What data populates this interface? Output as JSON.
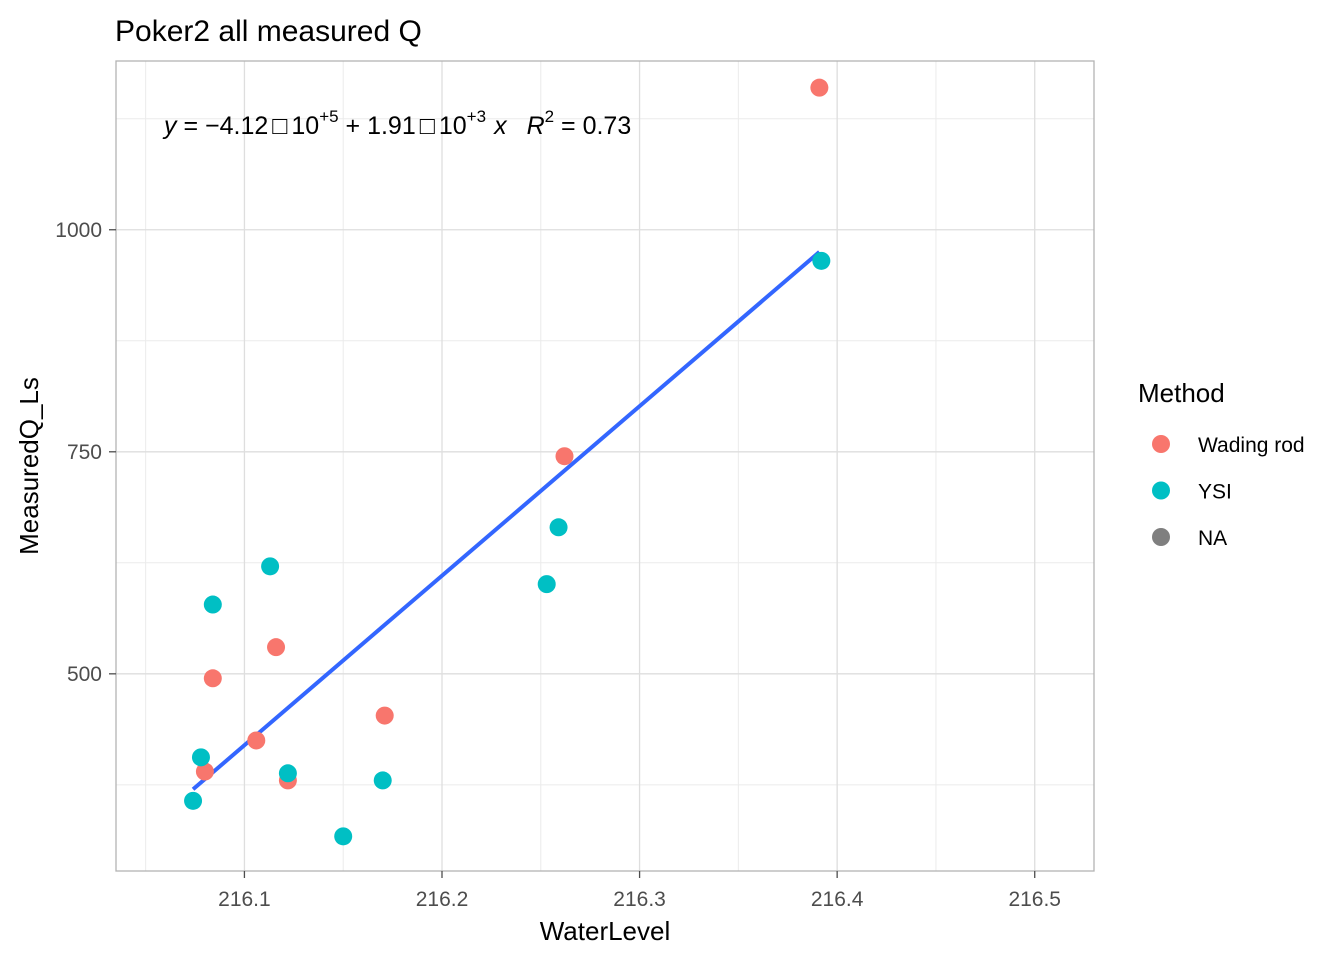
{
  "chart_data": {
    "type": "scatter",
    "title": "Poker2 all measured Q",
    "xlabel": "WaterLevel",
    "ylabel": "MeasuredQ_Ls",
    "xlim": [
      216.035,
      216.53
    ],
    "ylim": [
      278,
      1190
    ],
    "x_ticks": [
      216.1,
      216.2,
      216.3,
      216.4,
      216.5
    ],
    "x_tick_labels": [
      "216.1",
      "216.2",
      "216.3",
      "216.4",
      "216.5"
    ],
    "y_ticks": [
      500,
      750,
      1000
    ],
    "y_tick_labels": [
      "500",
      "750",
      "1000"
    ],
    "grid": true,
    "legend": {
      "title": "Method",
      "placement": "right",
      "entries": [
        {
          "label": "Wading rod",
          "color": "#F8766D"
        },
        {
          "label": "YSI",
          "color": "#00BFC4"
        },
        {
          "label": "NA",
          "color": "#7F7F7F"
        }
      ]
    },
    "series": [
      {
        "name": "Wading rod",
        "color": "#F8766D",
        "points": [
          {
            "x": 216.08,
            "y": 390
          },
          {
            "x": 216.084,
            "y": 495
          },
          {
            "x": 216.106,
            "y": 425
          },
          {
            "x": 216.116,
            "y": 530
          },
          {
            "x": 216.122,
            "y": 380
          },
          {
            "x": 216.171,
            "y": 453
          },
          {
            "x": 216.262,
            "y": 745
          },
          {
            "x": 216.391,
            "y": 1160
          }
        ]
      },
      {
        "name": "YSI",
        "color": "#00BFC4",
        "points": [
          {
            "x": 216.074,
            "y": 357
          },
          {
            "x": 216.078,
            "y": 406
          },
          {
            "x": 216.084,
            "y": 578
          },
          {
            "x": 216.113,
            "y": 621
          },
          {
            "x": 216.122,
            "y": 388
          },
          {
            "x": 216.15,
            "y": 317
          },
          {
            "x": 216.17,
            "y": 380
          },
          {
            "x": 216.253,
            "y": 601
          },
          {
            "x": 216.259,
            "y": 665
          },
          {
            "x": 216.392,
            "y": 965
          }
        ]
      }
    ],
    "fit_line": {
      "color": "#3366FF",
      "x_start": 216.074,
      "x_end": 216.391,
      "y_start": 370,
      "y_end": 975
    },
    "annotation": {
      "y_var": "y",
      "eq_sign": " = ",
      "intercept_mantissa": "−4.12",
      "times_symbol": "□",
      "base": "10",
      "intercept_exp": "+5",
      "plus": " + ",
      "slope_mantissa": "1.91",
      "slope_exp": "+3",
      "x_var": "x",
      "r_var": "R",
      "r_exp": "2",
      "r_value": " = 0.73"
    }
  }
}
